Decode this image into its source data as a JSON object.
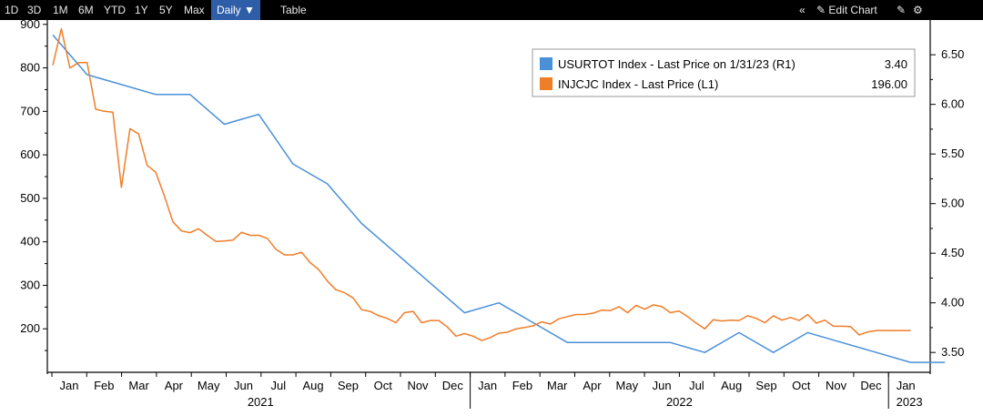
{
  "toolbar": {
    "ranges": [
      "1D",
      "3D",
      "1M",
      "6M",
      "YTD",
      "1Y",
      "5Y",
      "Max"
    ],
    "frequency": "Daily ▼",
    "table": "Table",
    "collapse": "«",
    "edit_chart": "✎ Edit Chart",
    "icons": [
      "edit-icon",
      "settings-icon"
    ]
  },
  "chart_data": {
    "type": "line",
    "left_axis": {
      "ticks": [
        "900",
        "800",
        "700",
        "600",
        "500",
        "400",
        "300",
        "200"
      ],
      "range": [
        100,
        910
      ]
    },
    "right_axis": {
      "ticks": [
        "6.50",
        "6.00",
        "5.50",
        "5.00",
        "4.50",
        "4.00",
        "3.50"
      ],
      "range": [
        3.3,
        6.85
      ]
    },
    "months": [
      "Jan",
      "Feb",
      "Mar",
      "Apr",
      "May",
      "Jun",
      "Jul",
      "Aug",
      "Sep",
      "Oct",
      "Nov",
      "Dec",
      "Jan",
      "Feb",
      "Mar",
      "Apr",
      "May",
      "Jun",
      "Jul",
      "Aug",
      "Sep",
      "Oct",
      "Nov",
      "Dec",
      "Jan"
    ],
    "years": [
      "2021",
      "2022",
      "2023"
    ],
    "legend": [
      {
        "color": "#4a90d9",
        "label": "USURTOT Index - Last Price on 1/31/23 (R1)",
        "value": "3.40"
      },
      {
        "color": "#f07d28",
        "label": "INJCJC Index - Last Price (L1)",
        "value": "196.00"
      }
    ],
    "series": [
      {
        "name": "USURTOT Index - Last Price on 1/31/23 (R1)",
        "axis": "right",
        "color": "#4a90d9",
        "x": [
          0,
          1,
          2,
          3,
          4,
          5,
          6,
          7,
          8,
          9,
          10,
          11,
          12,
          13,
          14,
          15,
          16,
          17,
          18,
          19,
          20,
          21,
          22,
          23,
          24,
          25,
          26
        ],
        "values": [
          6.7,
          6.3,
          6.2,
          6.1,
          6.1,
          5.8,
          5.9,
          5.4,
          5.2,
          4.8,
          4.5,
          4.2,
          3.9,
          4.0,
          3.8,
          3.6,
          3.6,
          3.6,
          3.6,
          3.5,
          3.7,
          3.5,
          3.7,
          3.6,
          3.5,
          3.4,
          3.4
        ]
      },
      {
        "name": "INJCJC Index - Last Price (L1)",
        "axis": "left",
        "color": "#f07d28",
        "x": [
          0.0,
          0.25,
          0.5,
          0.75,
          1.0,
          1.25,
          1.5,
          1.75,
          2.0,
          2.25,
          2.5,
          2.75,
          3.0,
          3.25,
          3.5,
          3.75,
          4.0,
          4.25,
          4.5,
          4.75,
          5.0,
          5.25,
          5.5,
          5.75,
          6.0,
          6.25,
          6.5,
          6.75,
          7.0,
          7.25,
          7.5,
          7.75,
          8.0,
          8.25,
          8.5,
          8.75,
          9.0,
          9.25,
          9.5,
          9.75,
          10.0,
          10.25,
          10.5,
          10.75,
          11.0,
          11.25,
          11.5,
          11.75,
          12.0,
          12.25,
          12.5,
          12.75,
          13.0,
          13.25,
          13.5,
          13.75,
          14.0,
          14.25,
          14.5,
          14.75,
          15.0,
          15.25,
          15.5,
          15.75,
          16.0,
          16.25,
          16.5,
          16.75,
          17.0,
          17.25,
          17.5,
          17.75,
          18.0,
          18.25,
          18.5,
          18.75,
          19.0,
          19.25,
          19.5,
          19.75,
          20.0,
          20.25,
          20.5,
          20.75,
          21.0,
          21.25,
          21.5,
          21.75,
          22.0,
          22.25,
          22.5,
          22.75,
          23.0,
          23.25,
          23.5,
          23.75,
          24.0,
          24.25,
          24.5,
          24.75,
          25.0
        ],
        "values": [
          806,
          890,
          800,
          812,
          812,
          705,
          700,
          698,
          525,
          660,
          648,
          576,
          560,
          506,
          446,
          425,
          421,
          430,
          415,
          401,
          402,
          404,
          422,
          415,
          415,
          408,
          383,
          370,
          370,
          376,
          352,
          336,
          310,
          290,
          283,
          271,
          244,
          240,
          230,
          224,
          214,
          237,
          240,
          214,
          219,
          219,
          204,
          183,
          189,
          183,
          173,
          180,
          190,
          192,
          200,
          203,
          207,
          216,
          211,
          223,
          228,
          233,
          233,
          236,
          243,
          242,
          251,
          237,
          254,
          245,
          255,
          251,
          237,
          241,
          228,
          213,
          200,
          221,
          218,
          220,
          219,
          230,
          224,
          214,
          230,
          220,
          226,
          219,
          233,
          213,
          220,
          206,
          206,
          205,
          186,
          193,
          196,
          196,
          196,
          196,
          196
        ]
      }
    ]
  }
}
